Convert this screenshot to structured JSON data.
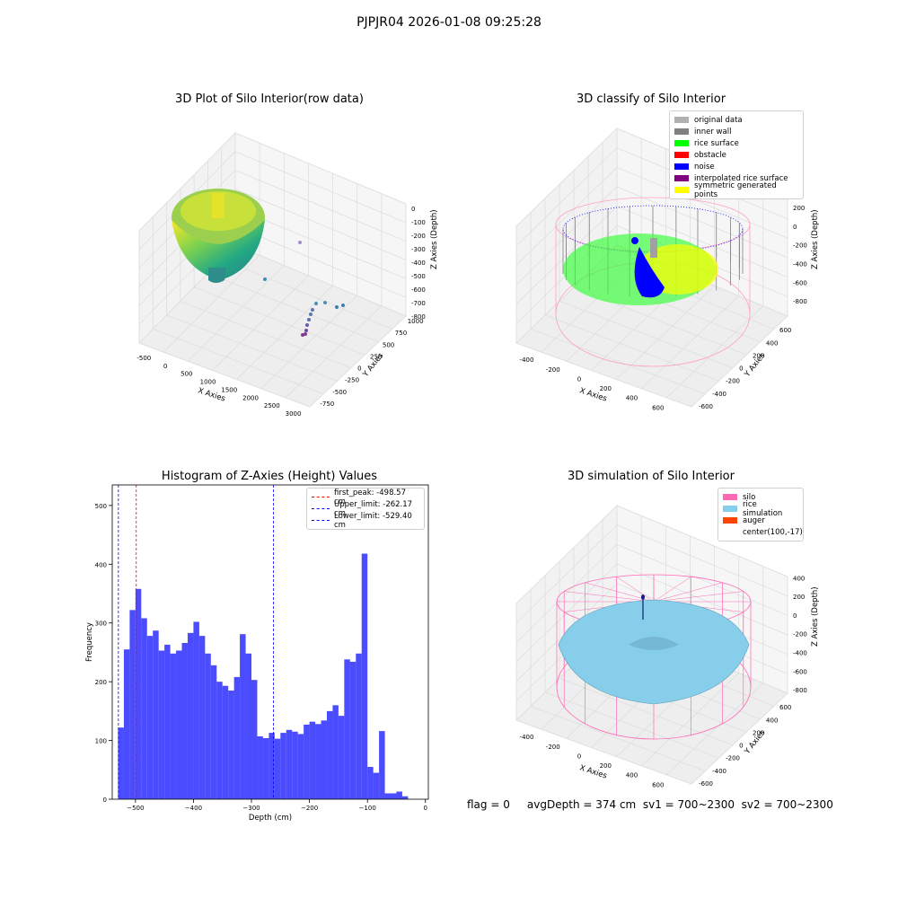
{
  "suptitle": "PJPJR04 2026-01-08 09:25:28",
  "bottom_text": "flag = 0     avgDepth = 374 cm  sv1 = 700~2300  sv2 = 700~2300",
  "chart_data": [
    {
      "type": "scatter3d",
      "title": "3D Plot of Silo Interior(row data)",
      "xlabel": "X Axies",
      "ylabel": "Y Axies",
      "zlabel": "Z Axies (Depth)",
      "xticks": [
        "-500",
        "0",
        "500",
        "1000",
        "1500",
        "2000",
        "2500",
        "3000"
      ],
      "yticks": [
        "-750",
        "-500",
        "-250",
        "0",
        "250",
        "500",
        "750",
        "1000"
      ],
      "zticks": [
        "0",
        "-100",
        "-200",
        "-300",
        "-400",
        "-500",
        "-600",
        "-700",
        "-800"
      ],
      "colormap": "viridis"
    },
    {
      "type": "scatter3d",
      "title": "3D classify of Silo Interior",
      "xlabel": "X Axies",
      "ylabel": "Y Axies",
      "zlabel": "Z Axies (Depth)",
      "xticks": [
        "-400",
        "-200",
        "0",
        "200",
        "400",
        "600"
      ],
      "yticks": [
        "-600",
        "-400",
        "-200",
        "0",
        "200",
        "400",
        "600"
      ],
      "zticks": [
        "200",
        "0",
        "-200",
        "-400",
        "-600",
        "-800"
      ],
      "legend": [
        {
          "label": "original data",
          "color": "#b0b0b0"
        },
        {
          "label": "inner wall",
          "color": "#808080"
        },
        {
          "label": "rice surface",
          "color": "#00ff00"
        },
        {
          "label": "obstacle",
          "color": "#ff0000"
        },
        {
          "label": "noise",
          "color": "#0000ff"
        },
        {
          "label": "interpolated rice surface",
          "color": "#800080"
        },
        {
          "label": "symmetric generated points",
          "color": "#ffff00"
        }
      ],
      "legend_loc": "upper right"
    },
    {
      "type": "bar",
      "title": "Histogram of Z-Axies (Height) Values",
      "xlabel": "Depth (cm)",
      "ylabel": "Frequency",
      "xlim": [
        -540,
        5
      ],
      "ylim": [
        0,
        535
      ],
      "xticks": [
        -500,
        -400,
        -300,
        -200,
        -100,
        0
      ],
      "xtick_labels": [
        "−500",
        "−400",
        "−300",
        "−200",
        "−100",
        "0"
      ],
      "yticks": [
        0,
        100,
        200,
        300,
        400,
        500
      ],
      "bin_start": -530,
      "bin_width": 10,
      "values": [
        122,
        255,
        322,
        358,
        308,
        278,
        287,
        253,
        263,
        248,
        253,
        266,
        283,
        302,
        278,
        248,
        228,
        200,
        193,
        185,
        208,
        281,
        248,
        203,
        107,
        104,
        113,
        103,
        113,
        118,
        115,
        111,
        127,
        132,
        128,
        134,
        150,
        160,
        142,
        238,
        234,
        248,
        418,
        55,
        45,
        116,
        10,
        10,
        13,
        5
      ],
      "color": "#0000ff",
      "vlines": [
        {
          "x": -498.57,
          "label": "first_peak: -498.57 cm",
          "color": "#ff0000"
        },
        {
          "x": -262.17,
          "label": "Upper_limit: -262.17 cm",
          "color": "#0000ff"
        },
        {
          "x": -529.4,
          "label": "Lower_limit: -529.40 cm",
          "color": "#0000ff"
        }
      ],
      "legend_loc": "upper right"
    },
    {
      "type": "surface3d",
      "title": "3D simulation of Silo Interior",
      "xlabel": "X Axies",
      "ylabel": "Y Axies",
      "zlabel": "Z Axies (Depth)",
      "xticks": [
        "-400",
        "-200",
        "0",
        "200",
        "400",
        "600"
      ],
      "yticks": [
        "-600",
        "-400",
        "-200",
        "0",
        "200",
        "400",
        "600"
      ],
      "zticks": [
        "400",
        "200",
        "0",
        "-200",
        "-400",
        "-600",
        "-800"
      ],
      "legend": [
        {
          "label": "silo",
          "color": "#ff69b4"
        },
        {
          "label": "rice simulation",
          "color": "#87ceeb"
        },
        {
          "label": "auger",
          "color": "#ff4500"
        },
        {
          "label": "center(100,-17)",
          "color": ""
        }
      ],
      "legend_loc": "upper right"
    }
  ]
}
